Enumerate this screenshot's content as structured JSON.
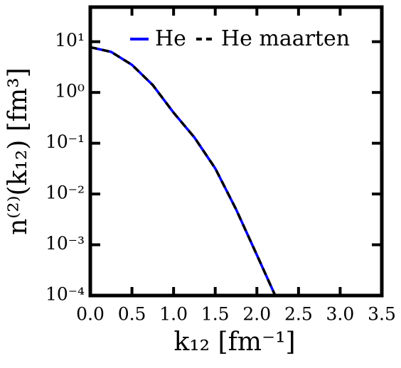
{
  "chart_data": {
    "type": "line",
    "x_label": "k₁₂ [fm⁻¹]",
    "y_label": "n⁽²⁾(k₁₂) [fm³]",
    "x": [
      0,
      0.25,
      0.5,
      0.75,
      1.0,
      1.25,
      1.5,
      1.75,
      2.0,
      2.22
    ],
    "series": [
      {
        "name": "He",
        "color": "#0000ff",
        "style": "solid",
        "values": [
          7.8,
          6.3,
          3.5,
          1.4,
          0.4,
          0.13,
          0.032,
          0.005,
          0.00063,
          0.0001
        ]
      },
      {
        "name": "He maarten",
        "color": "#000000",
        "style": "dashed",
        "values": [
          7.8,
          6.3,
          3.5,
          1.4,
          0.4,
          0.13,
          0.032,
          0.005,
          0.00063,
          0.0001
        ]
      }
    ],
    "xlim": [
      0,
      3.5
    ],
    "ylim": [
      0.0001,
      48
    ],
    "log_y": true,
    "xticks": [
      {
        "value": 0,
        "label": "0.0"
      },
      0.5,
      {
        "value": 1,
        "label": "1.0"
      },
      1.5,
      {
        "value": 2,
        "label": "2.0"
      },
      2.5,
      {
        "value": 3,
        "label": "3.0"
      },
      3.5
    ],
    "yticks": [
      {
        "value": 0.0001,
        "label": "10⁻⁴"
      },
      {
        "value": 0.001,
        "label": "10⁻³"
      },
      {
        "value": 0.01,
        "label": "10⁻²"
      },
      {
        "value": 0.1,
        "label": "10⁻¹"
      },
      {
        "value": 1,
        "label": "10⁰"
      },
      {
        "value": 10,
        "label": "10¹"
      }
    ],
    "legend": "upper right"
  }
}
